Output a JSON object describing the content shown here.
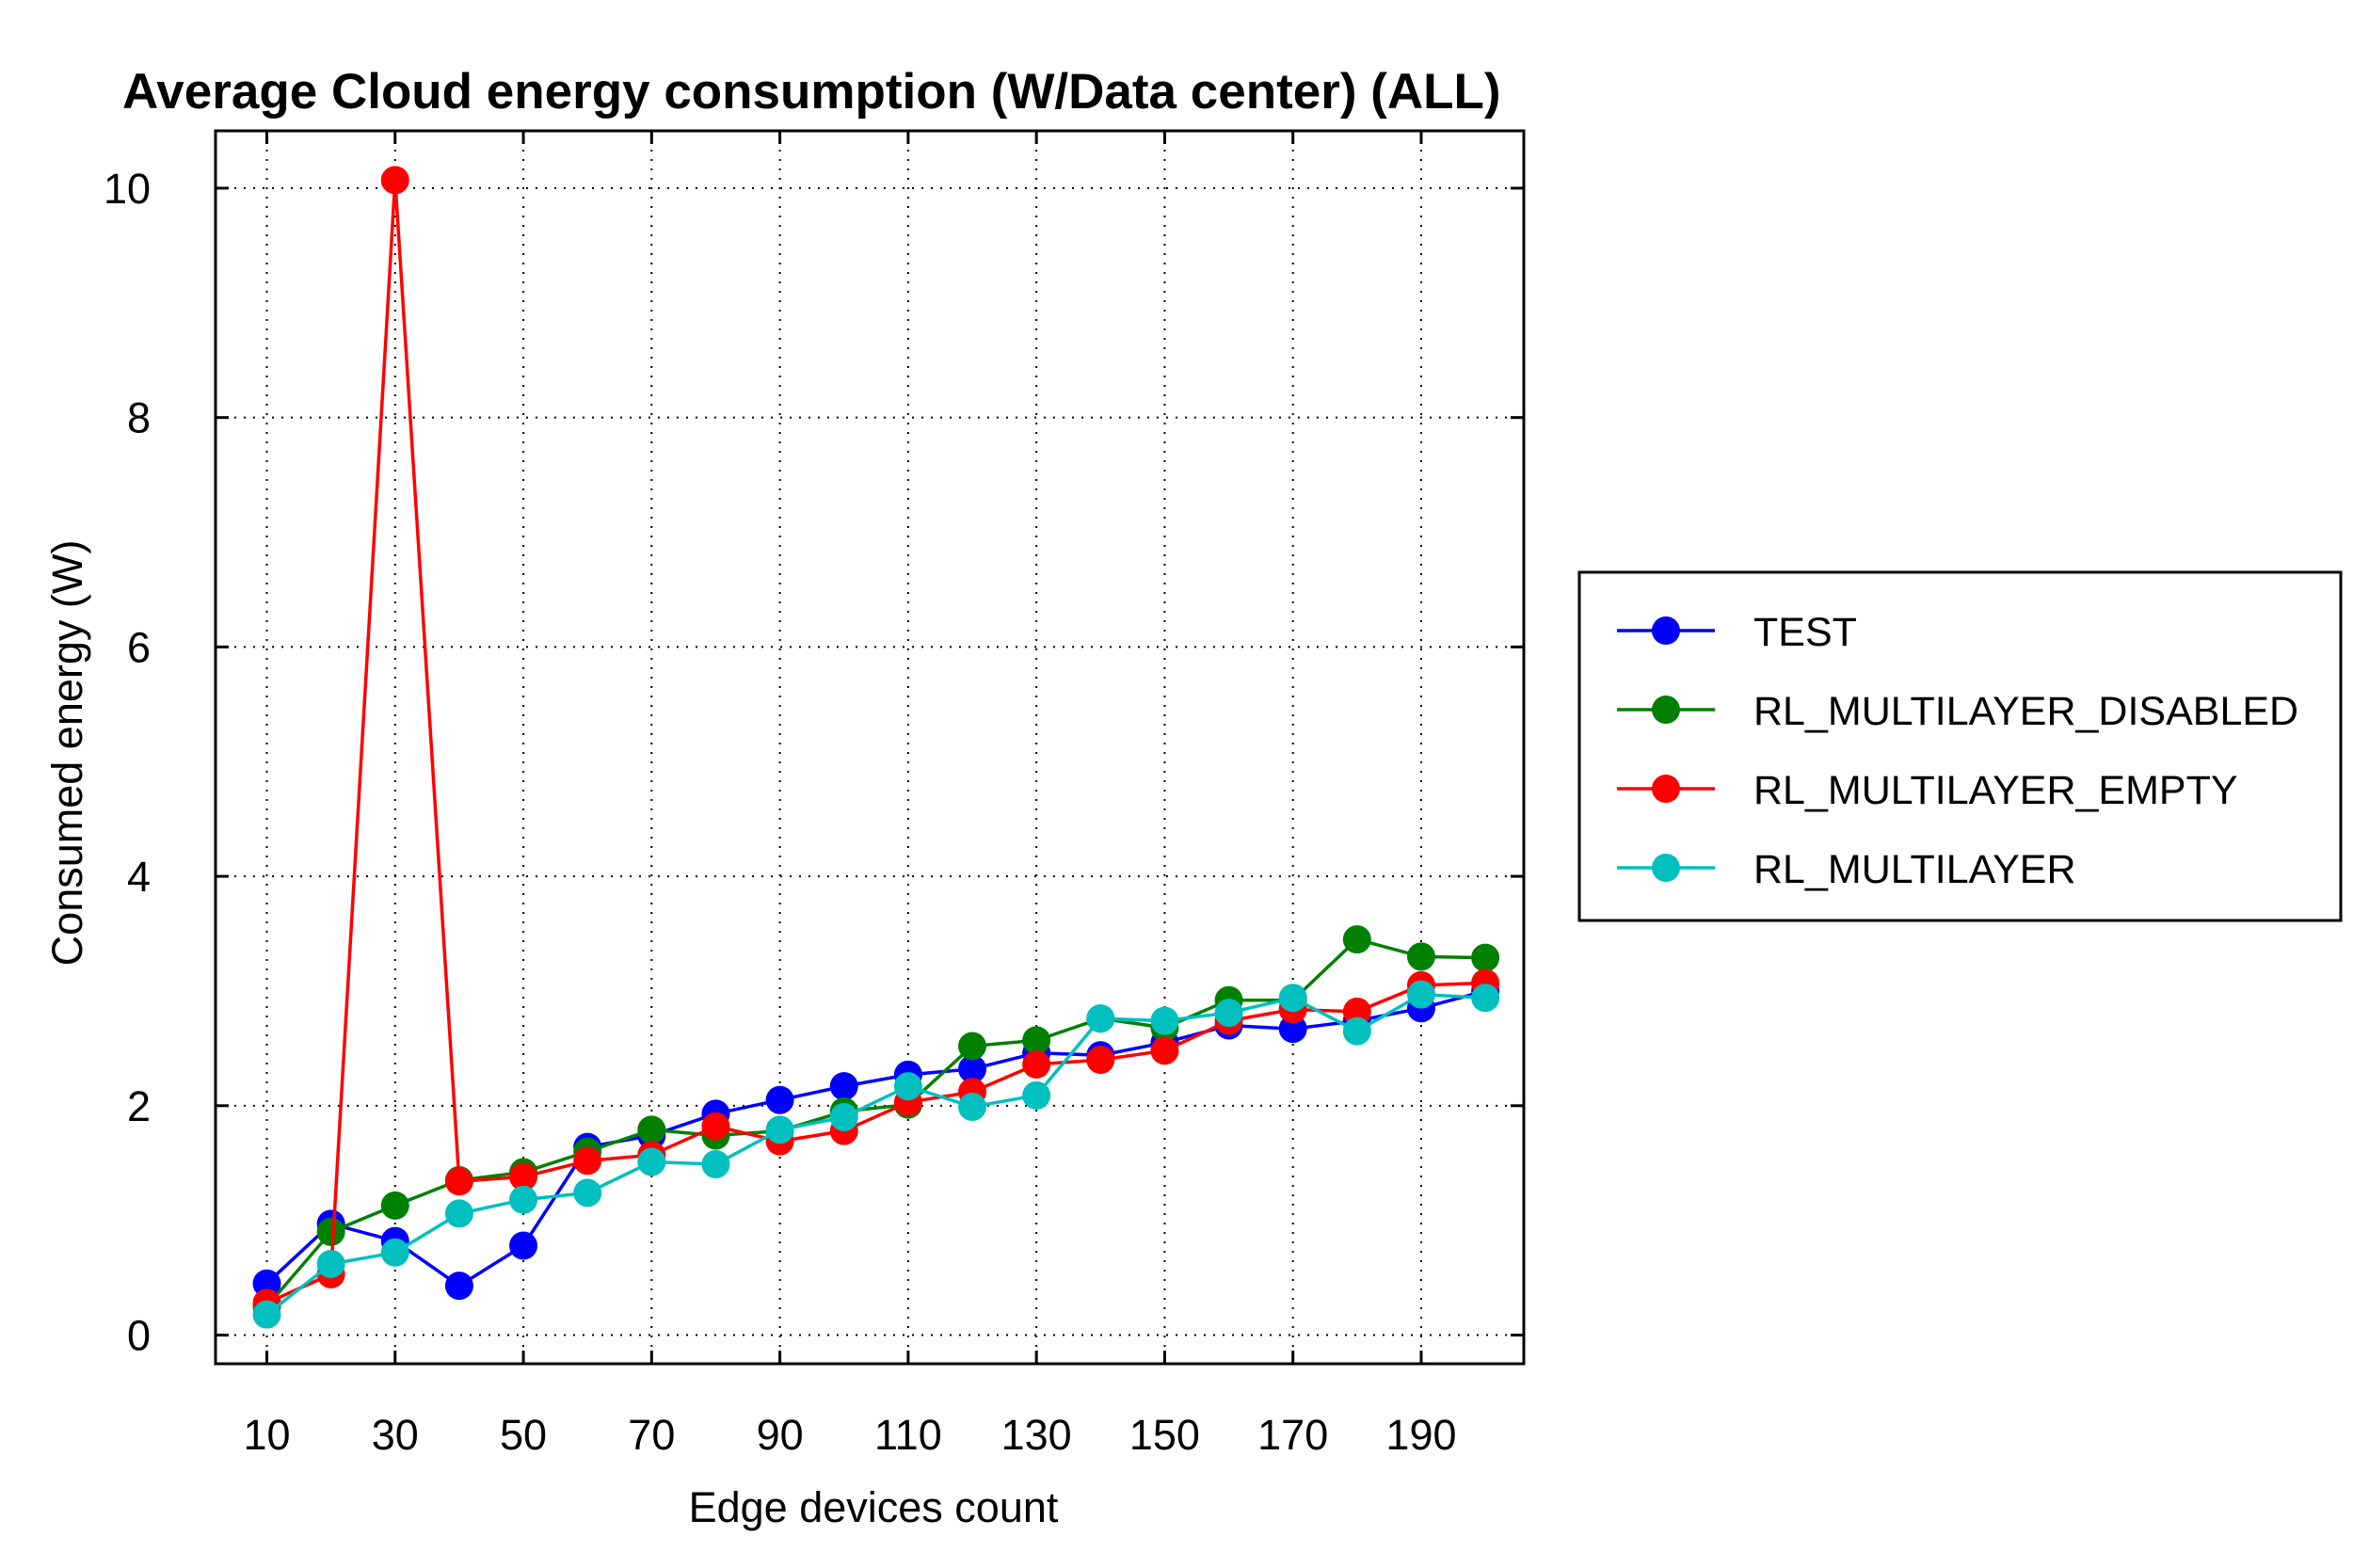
{
  "chart_data": {
    "type": "line",
    "title": "Average Cloud energy consumption (W/Data center) (ALL)",
    "xlabel": "Edge devices count",
    "ylabel": "Consumed energy (W)",
    "xlim": [
      2,
      206
    ],
    "ylim": [
      -0.25,
      10.5
    ],
    "x_ticks": [
      10,
      30,
      50,
      70,
      90,
      110,
      130,
      150,
      170,
      190
    ],
    "y_ticks": [
      0,
      2,
      4,
      6,
      8,
      10
    ],
    "grid": true,
    "legend_position": "right",
    "x": [
      10,
      20,
      30,
      40,
      50,
      60,
      70,
      80,
      90,
      100,
      110,
      120,
      130,
      140,
      150,
      160,
      170,
      180,
      190,
      200
    ],
    "series": [
      {
        "name": "TEST",
        "color": "#0000ff",
        "values": [
          0.45,
          0.97,
          0.82,
          0.43,
          0.78,
          1.64,
          1.74,
          1.93,
          2.05,
          2.17,
          2.27,
          2.32,
          2.46,
          2.44,
          2.55,
          2.7,
          2.67,
          2.74,
          2.85,
          3.0
        ]
      },
      {
        "name": "RL_MULTILAYER_DISABLED",
        "color": "#008000",
        "values": [
          0.25,
          0.9,
          1.13,
          1.35,
          1.42,
          1.6,
          1.79,
          1.74,
          1.78,
          1.95,
          2.01,
          2.52,
          2.57,
          2.76,
          2.68,
          2.92,
          2.92,
          3.45,
          3.3,
          3.29
        ]
      },
      {
        "name": "RL_MULTILAYER_EMPTY",
        "color": "#ff0000",
        "values": [
          0.28,
          0.53,
          10.07,
          1.34,
          1.38,
          1.52,
          1.57,
          1.82,
          1.69,
          1.78,
          2.03,
          2.12,
          2.36,
          2.4,
          2.48,
          2.74,
          2.84,
          2.82,
          3.05,
          3.07
        ]
      },
      {
        "name": "RL_MULTILAYER",
        "color": "#00bfbf",
        "values": [
          0.18,
          0.62,
          0.72,
          1.06,
          1.18,
          1.24,
          1.51,
          1.49,
          1.79,
          1.9,
          2.17,
          1.99,
          2.09,
          2.76,
          2.74,
          2.81,
          2.94,
          2.65,
          2.97,
          2.94
        ]
      }
    ]
  }
}
